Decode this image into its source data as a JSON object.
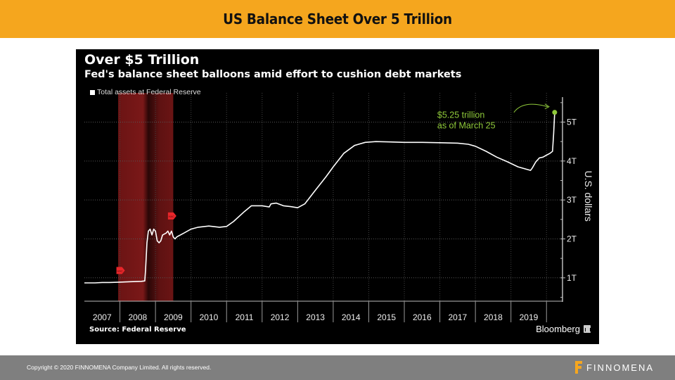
{
  "slide": {
    "title": "US Balance Sheet Over 5 Trillion"
  },
  "footer": {
    "copyright": "Copyright © 2020 FINNOMENA Company Limited. All rights reserved.",
    "logo_text": "FINNOMENA",
    "logo_color": "#f5a61e"
  },
  "chart_data": {
    "type": "line",
    "title": "Over $5 Trillion",
    "subtitle": "Fed's balance sheet balloons amid effort to cushion debt markets",
    "legend": [
      {
        "name": "Total assets at Federal Reserve",
        "color": "#ffffff"
      }
    ],
    "legend_placement": "top-left",
    "xlabel": "",
    "ylabel": "U.S. dollars",
    "x_ticks": [
      "2007",
      "2008",
      "2009",
      "2010",
      "2011",
      "2012",
      "2013",
      "2014",
      "2015",
      "2016",
      "2017",
      "2018",
      "2019"
    ],
    "xlim": [
      2007.0,
      2020.45
    ],
    "y_ticks": [
      {
        "value": 1,
        "label": "1T"
      },
      {
        "value": 2,
        "label": "2T"
      },
      {
        "value": 3,
        "label": "3T"
      },
      {
        "value": 4,
        "label": "4T"
      },
      {
        "value": 5,
        "label": "5T"
      }
    ],
    "ylim": [
      0.4,
      5.75
    ],
    "grid": true,
    "recession_shading": {
      "start": 2007.95,
      "end": 2009.5,
      "color": "#6b1515"
    },
    "markers": [
      {
        "x": 2008.0,
        "y": 0.9,
        "label": "HAC",
        "color": "#e8262a"
      },
      {
        "x": 2009.45,
        "y": 2.3,
        "label": "HAC",
        "color": "#e8262a"
      }
    ],
    "annotation": {
      "line1": "$5.25 trillion",
      "line2": "as of March 25",
      "x": 2020.23,
      "y": 5.25,
      "color": "#8fc93a"
    },
    "series": [
      {
        "name": "Total assets at Federal Reserve",
        "color": "#ffffff",
        "units": "trillions USD",
        "points": [
          [
            2007.0,
            0.87
          ],
          [
            2007.3,
            0.87
          ],
          [
            2007.5,
            0.88
          ],
          [
            2007.7,
            0.88
          ],
          [
            2008.0,
            0.89
          ],
          [
            2008.3,
            0.9
          ],
          [
            2008.6,
            0.91
          ],
          [
            2008.7,
            0.92
          ],
          [
            2008.72,
            1.2
          ],
          [
            2008.76,
            1.9
          ],
          [
            2008.8,
            2.2
          ],
          [
            2008.85,
            2.25
          ],
          [
            2008.9,
            2.1
          ],
          [
            2008.95,
            2.25
          ],
          [
            2009.0,
            2.2
          ],
          [
            2009.05,
            1.95
          ],
          [
            2009.1,
            1.9
          ],
          [
            2009.15,
            1.95
          ],
          [
            2009.2,
            2.1
          ],
          [
            2009.3,
            2.15
          ],
          [
            2009.35,
            2.2
          ],
          [
            2009.4,
            2.1
          ],
          [
            2009.45,
            2.2
          ],
          [
            2009.5,
            2.05
          ],
          [
            2009.55,
            2.0
          ],
          [
            2009.6,
            2.05
          ],
          [
            2009.7,
            2.1
          ],
          [
            2009.8,
            2.15
          ],
          [
            2010.0,
            2.25
          ],
          [
            2010.2,
            2.3
          ],
          [
            2010.5,
            2.33
          ],
          [
            2010.8,
            2.3
          ],
          [
            2011.0,
            2.32
          ],
          [
            2011.2,
            2.45
          ],
          [
            2011.5,
            2.7
          ],
          [
            2011.7,
            2.85
          ],
          [
            2012.0,
            2.85
          ],
          [
            2012.2,
            2.82
          ],
          [
            2012.25,
            2.9
          ],
          [
            2012.4,
            2.92
          ],
          [
            2012.6,
            2.85
          ],
          [
            2012.8,
            2.83
          ],
          [
            2013.0,
            2.8
          ],
          [
            2013.2,
            2.9
          ],
          [
            2013.5,
            3.25
          ],
          [
            2013.8,
            3.6
          ],
          [
            2014.0,
            3.85
          ],
          [
            2014.3,
            4.2
          ],
          [
            2014.6,
            4.4
          ],
          [
            2014.9,
            4.48
          ],
          [
            2015.2,
            4.5
          ],
          [
            2015.6,
            4.49
          ],
          [
            2016.0,
            4.48
          ],
          [
            2016.5,
            4.48
          ],
          [
            2017.0,
            4.47
          ],
          [
            2017.5,
            4.46
          ],
          [
            2017.8,
            4.43
          ],
          [
            2018.0,
            4.38
          ],
          [
            2018.3,
            4.25
          ],
          [
            2018.6,
            4.1
          ],
          [
            2018.9,
            3.98
          ],
          [
            2019.2,
            3.85
          ],
          [
            2019.55,
            3.76
          ],
          [
            2019.6,
            3.82
          ],
          [
            2019.7,
            3.98
          ],
          [
            2019.8,
            4.08
          ],
          [
            2019.9,
            4.1
          ],
          [
            2020.0,
            4.15
          ],
          [
            2020.1,
            4.2
          ],
          [
            2020.17,
            4.25
          ],
          [
            2020.2,
            4.7
          ],
          [
            2020.23,
            5.25
          ]
        ]
      }
    ]
  }
}
